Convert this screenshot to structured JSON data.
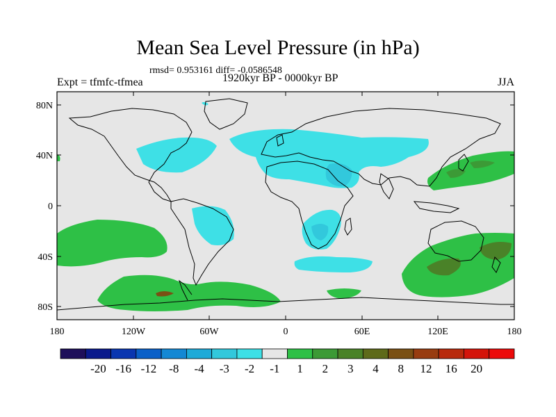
{
  "header": {
    "title": "Mean Sea Level Pressure (in hPa)",
    "stats": "rmsd= 0.953161 diff= -0.0586548",
    "experiment": "Expt = tfmfc-tfmea",
    "period": "1920kyr BP - 0000kyr BP",
    "season": "JJA"
  },
  "map": {
    "lat_labels": [
      "80N",
      "40N",
      "0",
      "40S",
      "80S"
    ],
    "lon_labels": [
      "180",
      "120W",
      "60W",
      "0",
      "60E",
      "120E",
      "180"
    ],
    "background": "#e6e6e6",
    "coast_color": "#000000"
  },
  "colorbar": {
    "colors": [
      "#1e0f5a",
      "#0a1a8c",
      "#0a36b0",
      "#0a60c8",
      "#1488d4",
      "#1eaad8",
      "#32c8dc",
      "#3ee0e6",
      "#e6e6e6",
      "#2ec046",
      "#3c9a36",
      "#4a8228",
      "#5e6a1a",
      "#7a5014",
      "#983c10",
      "#b82a0c",
      "#d4140a",
      "#ec0a0a"
    ],
    "labels": [
      "-20",
      "-16",
      "-12",
      "-8",
      "-4",
      "-3",
      "-2",
      "-1",
      "1",
      "2",
      "3",
      "4",
      "8",
      "12",
      "16",
      "20"
    ]
  }
}
